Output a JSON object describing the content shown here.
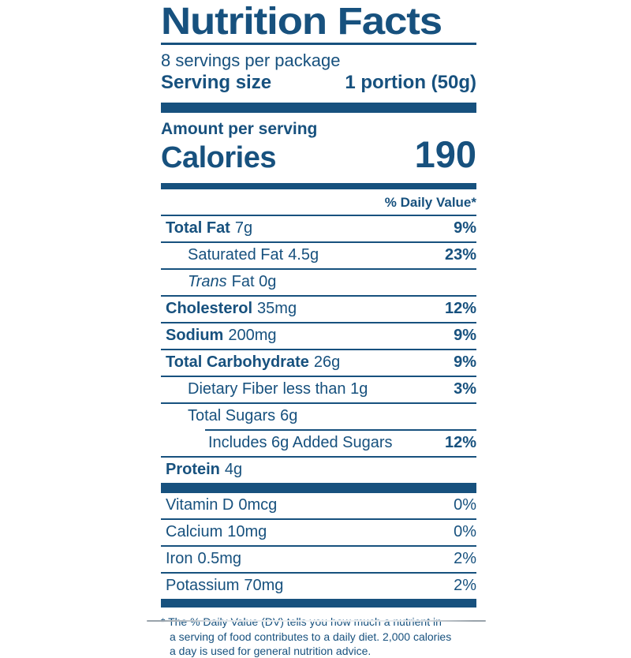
{
  "colors": {
    "brand_blue": "#17517e",
    "background": "#ffffff"
  },
  "header": {
    "title": "Nutrition Facts",
    "servings_per_package": "8 servings per package",
    "serving_size_label": "Serving size",
    "serving_size_value": "1 portion (50g)"
  },
  "calories": {
    "amount_per_serving_label": "Amount per serving",
    "label": "Calories",
    "value": "190"
  },
  "daily_value_header": "% Daily Value*",
  "nutrients": [
    {
      "name": "Total Fat",
      "amount": "7g",
      "dv": "9%"
    },
    {
      "name": "Saturated Fat",
      "amount": "4.5g",
      "dv": "23%"
    },
    {
      "name": "Trans",
      "amount": "Fat 0g",
      "dv": ""
    },
    {
      "name": "Cholesterol",
      "amount": "35mg",
      "dv": "12%"
    },
    {
      "name": "Sodium",
      "amount": "200mg",
      "dv": "9%"
    },
    {
      "name": "Total Carbohydrate",
      "amount": "26g",
      "dv": "9%"
    },
    {
      "name": "Dietary Fiber",
      "amount": "less than 1g",
      "dv": "3%"
    },
    {
      "name": "Total Sugars",
      "amount": "6g",
      "dv": ""
    },
    {
      "name": "Includes 6g Added Sugars",
      "amount": "",
      "dv": "12%"
    },
    {
      "name": "Protein",
      "amount": "4g",
      "dv": ""
    }
  ],
  "vitamins": [
    {
      "name": "Vitamin D",
      "amount": "0mcg",
      "dv": "0%"
    },
    {
      "name": "Calcium",
      "amount": "10mg",
      "dv": "0%"
    },
    {
      "name": "Iron",
      "amount": "0.5mg",
      "dv": "2%"
    },
    {
      "name": "Potassium",
      "amount": "70mg",
      "dv": "2%"
    }
  ],
  "footnote": {
    "lines": [
      "* The % Daily Value (DV) tells you how much a nutrient in",
      "a serving of food contributes to a daily diet. 2,000 calories",
      "a day is used for general nutrition advice."
    ]
  }
}
